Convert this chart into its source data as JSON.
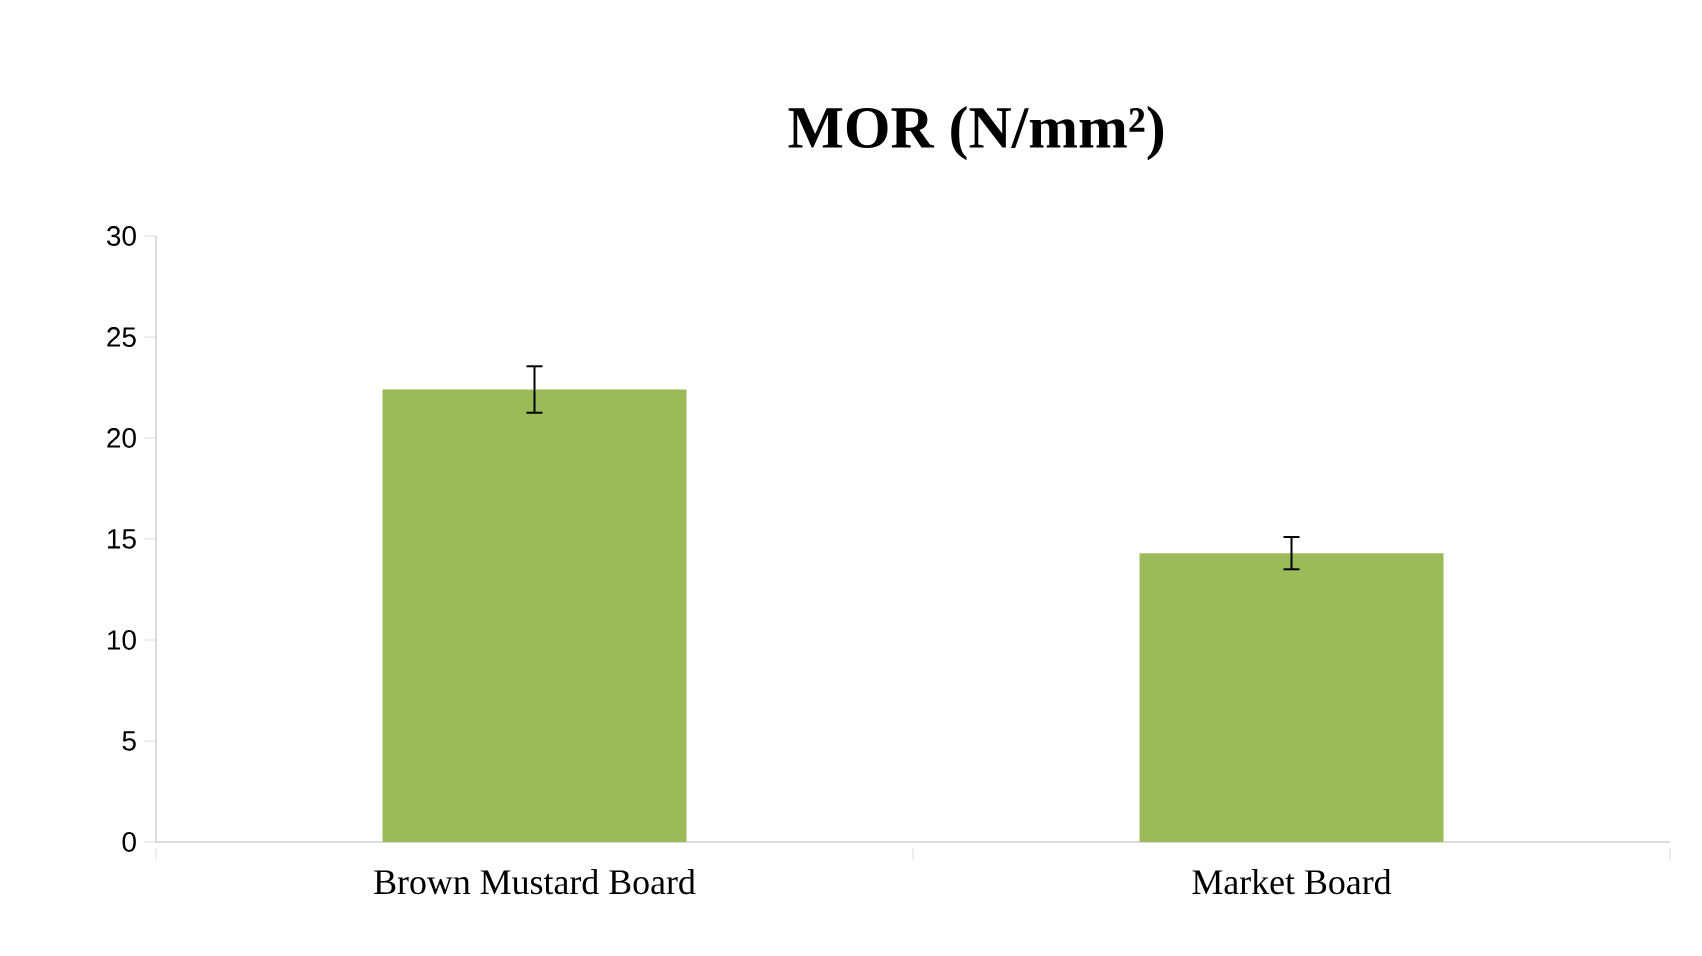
{
  "chart_data": {
    "type": "bar",
    "title": "MOR (N/mm²)",
    "categories": [
      "Brown Mustard Board",
      "Market Board"
    ],
    "values": [
      22.4,
      14.3
    ],
    "errors": [
      1.15,
      0.8
    ],
    "color": "#9bbb59",
    "ylim": [
      0,
      30
    ],
    "yticks": [
      0,
      5,
      10,
      15,
      20,
      25,
      30
    ],
    "grid": false,
    "legend": false
  }
}
